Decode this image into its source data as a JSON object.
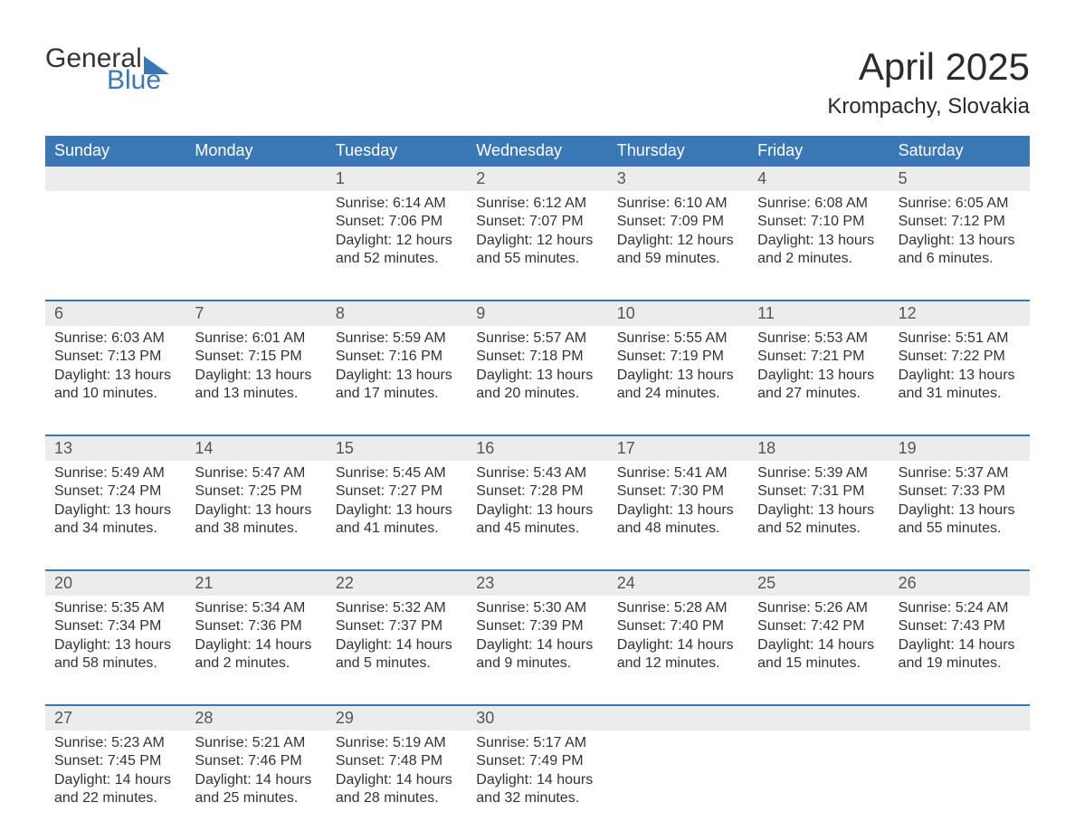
{
  "brand": {
    "text_general": "General",
    "text_blue": "Blue",
    "flag_color": "#3a78b5"
  },
  "title": {
    "month": "April 2025",
    "location": "Krompachy, Slovakia"
  },
  "colors": {
    "header_bg": "#3a78b5",
    "header_text": "#ffffff",
    "daynum_bg": "#ececec",
    "daynum_text": "#555555",
    "body_text": "#333333",
    "row_divider": "#3a78b5",
    "page_bg": "#ffffff"
  },
  "calendar": {
    "type": "table",
    "day_names": [
      "Sunday",
      "Monday",
      "Tuesday",
      "Wednesday",
      "Thursday",
      "Friday",
      "Saturday"
    ],
    "weeks": [
      {
        "nums": [
          "",
          "",
          "1",
          "2",
          "3",
          "4",
          "5"
        ],
        "cells": [
          null,
          null,
          {
            "sunrise": "Sunrise: 6:14 AM",
            "sunset": "Sunset: 7:06 PM",
            "dl1": "Daylight: 12 hours",
            "dl2": "and 52 minutes."
          },
          {
            "sunrise": "Sunrise: 6:12 AM",
            "sunset": "Sunset: 7:07 PM",
            "dl1": "Daylight: 12 hours",
            "dl2": "and 55 minutes."
          },
          {
            "sunrise": "Sunrise: 6:10 AM",
            "sunset": "Sunset: 7:09 PM",
            "dl1": "Daylight: 12 hours",
            "dl2": "and 59 minutes."
          },
          {
            "sunrise": "Sunrise: 6:08 AM",
            "sunset": "Sunset: 7:10 PM",
            "dl1": "Daylight: 13 hours",
            "dl2": "and 2 minutes."
          },
          {
            "sunrise": "Sunrise: 6:05 AM",
            "sunset": "Sunset: 7:12 PM",
            "dl1": "Daylight: 13 hours",
            "dl2": "and 6 minutes."
          }
        ]
      },
      {
        "nums": [
          "6",
          "7",
          "8",
          "9",
          "10",
          "11",
          "12"
        ],
        "cells": [
          {
            "sunrise": "Sunrise: 6:03 AM",
            "sunset": "Sunset: 7:13 PM",
            "dl1": "Daylight: 13 hours",
            "dl2": "and 10 minutes."
          },
          {
            "sunrise": "Sunrise: 6:01 AM",
            "sunset": "Sunset: 7:15 PM",
            "dl1": "Daylight: 13 hours",
            "dl2": "and 13 minutes."
          },
          {
            "sunrise": "Sunrise: 5:59 AM",
            "sunset": "Sunset: 7:16 PM",
            "dl1": "Daylight: 13 hours",
            "dl2": "and 17 minutes."
          },
          {
            "sunrise": "Sunrise: 5:57 AM",
            "sunset": "Sunset: 7:18 PM",
            "dl1": "Daylight: 13 hours",
            "dl2": "and 20 minutes."
          },
          {
            "sunrise": "Sunrise: 5:55 AM",
            "sunset": "Sunset: 7:19 PM",
            "dl1": "Daylight: 13 hours",
            "dl2": "and 24 minutes."
          },
          {
            "sunrise": "Sunrise: 5:53 AM",
            "sunset": "Sunset: 7:21 PM",
            "dl1": "Daylight: 13 hours",
            "dl2": "and 27 minutes."
          },
          {
            "sunrise": "Sunrise: 5:51 AM",
            "sunset": "Sunset: 7:22 PM",
            "dl1": "Daylight: 13 hours",
            "dl2": "and 31 minutes."
          }
        ]
      },
      {
        "nums": [
          "13",
          "14",
          "15",
          "16",
          "17",
          "18",
          "19"
        ],
        "cells": [
          {
            "sunrise": "Sunrise: 5:49 AM",
            "sunset": "Sunset: 7:24 PM",
            "dl1": "Daylight: 13 hours",
            "dl2": "and 34 minutes."
          },
          {
            "sunrise": "Sunrise: 5:47 AM",
            "sunset": "Sunset: 7:25 PM",
            "dl1": "Daylight: 13 hours",
            "dl2": "and 38 minutes."
          },
          {
            "sunrise": "Sunrise: 5:45 AM",
            "sunset": "Sunset: 7:27 PM",
            "dl1": "Daylight: 13 hours",
            "dl2": "and 41 minutes."
          },
          {
            "sunrise": "Sunrise: 5:43 AM",
            "sunset": "Sunset: 7:28 PM",
            "dl1": "Daylight: 13 hours",
            "dl2": "and 45 minutes."
          },
          {
            "sunrise": "Sunrise: 5:41 AM",
            "sunset": "Sunset: 7:30 PM",
            "dl1": "Daylight: 13 hours",
            "dl2": "and 48 minutes."
          },
          {
            "sunrise": "Sunrise: 5:39 AM",
            "sunset": "Sunset: 7:31 PM",
            "dl1": "Daylight: 13 hours",
            "dl2": "and 52 minutes."
          },
          {
            "sunrise": "Sunrise: 5:37 AM",
            "sunset": "Sunset: 7:33 PM",
            "dl1": "Daylight: 13 hours",
            "dl2": "and 55 minutes."
          }
        ]
      },
      {
        "nums": [
          "20",
          "21",
          "22",
          "23",
          "24",
          "25",
          "26"
        ],
        "cells": [
          {
            "sunrise": "Sunrise: 5:35 AM",
            "sunset": "Sunset: 7:34 PM",
            "dl1": "Daylight: 13 hours",
            "dl2": "and 58 minutes."
          },
          {
            "sunrise": "Sunrise: 5:34 AM",
            "sunset": "Sunset: 7:36 PM",
            "dl1": "Daylight: 14 hours",
            "dl2": "and 2 minutes."
          },
          {
            "sunrise": "Sunrise: 5:32 AM",
            "sunset": "Sunset: 7:37 PM",
            "dl1": "Daylight: 14 hours",
            "dl2": "and 5 minutes."
          },
          {
            "sunrise": "Sunrise: 5:30 AM",
            "sunset": "Sunset: 7:39 PM",
            "dl1": "Daylight: 14 hours",
            "dl2": "and 9 minutes."
          },
          {
            "sunrise": "Sunrise: 5:28 AM",
            "sunset": "Sunset: 7:40 PM",
            "dl1": "Daylight: 14 hours",
            "dl2": "and 12 minutes."
          },
          {
            "sunrise": "Sunrise: 5:26 AM",
            "sunset": "Sunset: 7:42 PM",
            "dl1": "Daylight: 14 hours",
            "dl2": "and 15 minutes."
          },
          {
            "sunrise": "Sunrise: 5:24 AM",
            "sunset": "Sunset: 7:43 PM",
            "dl1": "Daylight: 14 hours",
            "dl2": "and 19 minutes."
          }
        ]
      },
      {
        "nums": [
          "27",
          "28",
          "29",
          "30",
          "",
          "",
          ""
        ],
        "cells": [
          {
            "sunrise": "Sunrise: 5:23 AM",
            "sunset": "Sunset: 7:45 PM",
            "dl1": "Daylight: 14 hours",
            "dl2": "and 22 minutes."
          },
          {
            "sunrise": "Sunrise: 5:21 AM",
            "sunset": "Sunset: 7:46 PM",
            "dl1": "Daylight: 14 hours",
            "dl2": "and 25 minutes."
          },
          {
            "sunrise": "Sunrise: 5:19 AM",
            "sunset": "Sunset: 7:48 PM",
            "dl1": "Daylight: 14 hours",
            "dl2": "and 28 minutes."
          },
          {
            "sunrise": "Sunrise: 5:17 AM",
            "sunset": "Sunset: 7:49 PM",
            "dl1": "Daylight: 14 hours",
            "dl2": "and 32 minutes."
          },
          null,
          null,
          null
        ]
      }
    ]
  }
}
